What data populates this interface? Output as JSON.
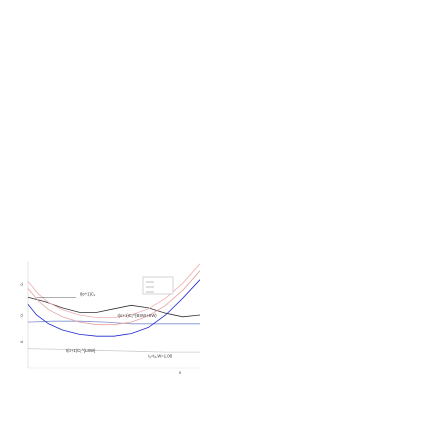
{
  "chart_data": {
    "type": "line",
    "title": "",
    "xlabel": "",
    "ylabel": "",
    "tick_labels": {
      "y_left": [
        "0.",
        "0.",
        "0."
      ],
      "x_bottom": [
        "0"
      ]
    },
    "grid": false,
    "legend": {
      "placement": "top",
      "entries": [
        "",
        ""
      ]
    },
    "series": [
      {
        "name": "I(σ+1)C₁",
        "color": "#333333",
        "points": [
          [
            0.0,
            0.08
          ],
          [
            0.1,
            0.075
          ],
          [
            0.2,
            0.068
          ],
          [
            0.3,
            0.063
          ],
          [
            0.4,
            0.063
          ],
          [
            0.5,
            0.067
          ],
          [
            0.6,
            0.071
          ],
          [
            0.7,
            0.068
          ],
          [
            0.8,
            0.062
          ],
          [
            0.9,
            0.058
          ],
          [
            1.0,
            0.06
          ]
        ]
      },
      {
        "name": "I(σ+1)C₁^{BSW+SW}",
        "color": "#7f8fd0",
        "points": [
          [
            0.0,
            0.052
          ],
          [
            0.15,
            0.053
          ],
          [
            0.3,
            0.053
          ],
          [
            0.45,
            0.052
          ],
          [
            0.6,
            0.05
          ],
          [
            0.75,
            0.05
          ],
          [
            0.9,
            0.05
          ],
          [
            1.0,
            0.05
          ]
        ]
      },
      {
        "name": "I(σ+1)C₁^{LSW}",
        "color": "#cccccc",
        "points": [
          [
            0.0,
            0.022
          ],
          [
            0.2,
            0.021
          ],
          [
            0.4,
            0.02
          ],
          [
            0.6,
            0.019
          ],
          [
            0.8,
            0.018
          ],
          [
            1.0,
            0.018
          ]
        ]
      },
      {
        "name": "",
        "color": "#1f2ad0",
        "points": [
          [
            0.0,
            0.072
          ],
          [
            0.05,
            0.06
          ],
          [
            0.12,
            0.05
          ],
          [
            0.2,
            0.043
          ],
          [
            0.3,
            0.038
          ],
          [
            0.4,
            0.036
          ],
          [
            0.5,
            0.036
          ],
          [
            0.6,
            0.039
          ],
          [
            0.7,
            0.046
          ],
          [
            0.8,
            0.06
          ],
          [
            0.9,
            0.079
          ],
          [
            1.0,
            0.1
          ]
        ]
      },
      {
        "name": "",
        "color": "#e8a0a0",
        "points": [
          [
            0.0,
            0.09
          ],
          [
            0.06,
            0.076
          ],
          [
            0.12,
            0.066
          ],
          [
            0.2,
            0.058
          ],
          [
            0.3,
            0.052
          ],
          [
            0.4,
            0.049
          ],
          [
            0.5,
            0.049
          ],
          [
            0.6,
            0.052
          ],
          [
            0.7,
            0.059
          ],
          [
            0.8,
            0.071
          ],
          [
            0.9,
            0.088
          ],
          [
            1.0,
            0.11
          ]
        ]
      },
      {
        "name": "",
        "color": "#f0b0b0",
        "points": [
          [
            0.0,
            0.098
          ],
          [
            0.06,
            0.084
          ],
          [
            0.12,
            0.074
          ],
          [
            0.2,
            0.066
          ],
          [
            0.3,
            0.06
          ],
          [
            0.4,
            0.057
          ],
          [
            0.5,
            0.057
          ],
          [
            0.6,
            0.06
          ],
          [
            0.7,
            0.067
          ],
          [
            0.8,
            0.079
          ],
          [
            0.9,
            0.096
          ],
          [
            1.0,
            0.118
          ]
        ]
      }
    ],
    "annotations": [
      {
        "text": "I(σ+1)C₁",
        "series": 0
      },
      {
        "text": "I(σ+1)C₁^{BSW+SW}",
        "series": 1
      },
      {
        "text": "I(σ+1)C₁^{LSW}",
        "series": 2
      },
      {
        "text": "t₁=t₂,W=1.08",
        "series": -1
      }
    ],
    "xlim": [
      0,
      1
    ],
    "ylim": [
      0,
      0.12
    ]
  }
}
